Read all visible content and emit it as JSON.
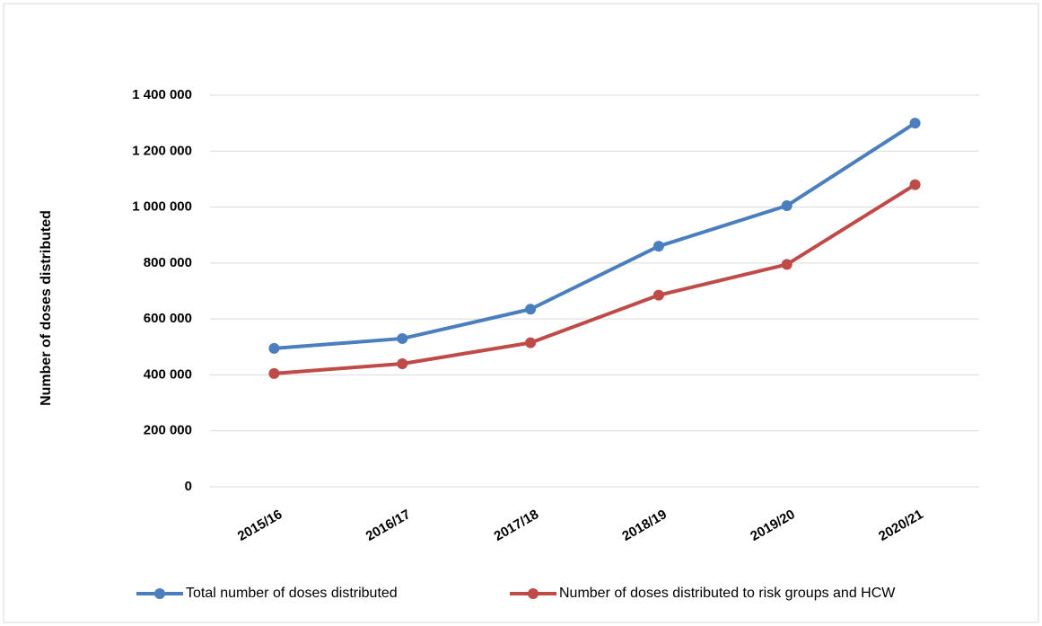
{
  "chart_data": {
    "type": "line",
    "y_label": "Number of doses distributed",
    "categories": [
      "2015/16",
      "2016/17",
      "2017/18",
      "2018/19",
      "2019/20",
      "2020/21"
    ],
    "series": [
      {
        "name": "Total number of doses distributed",
        "color": "#4a7ebf",
        "values": [
          495000,
          530000,
          635000,
          860000,
          1005000,
          1300000
        ]
      },
      {
        "name": "Number of doses distributed to risk groups and HCW",
        "color": "#bf4b48",
        "values": [
          405000,
          440000,
          515000,
          685000,
          795000,
          1080000
        ]
      }
    ],
    "ylim": [
      0,
      1400000
    ],
    "yticks": [
      0,
      {
        "value": 200000,
        "label": "200 000"
      },
      {
        "value": 400000,
        "label": "400 000"
      },
      {
        "value": 600000,
        "label": "600 000"
      },
      {
        "value": 800000,
        "label": "800 000"
      },
      {
        "value": 1000000,
        "label": "1 000 000"
      },
      {
        "value": 1200000,
        "label": "1 200 000"
      },
      {
        "value": 1400000,
        "label": "1 400 000"
      }
    ],
    "grid": true,
    "legend": "bottom"
  }
}
